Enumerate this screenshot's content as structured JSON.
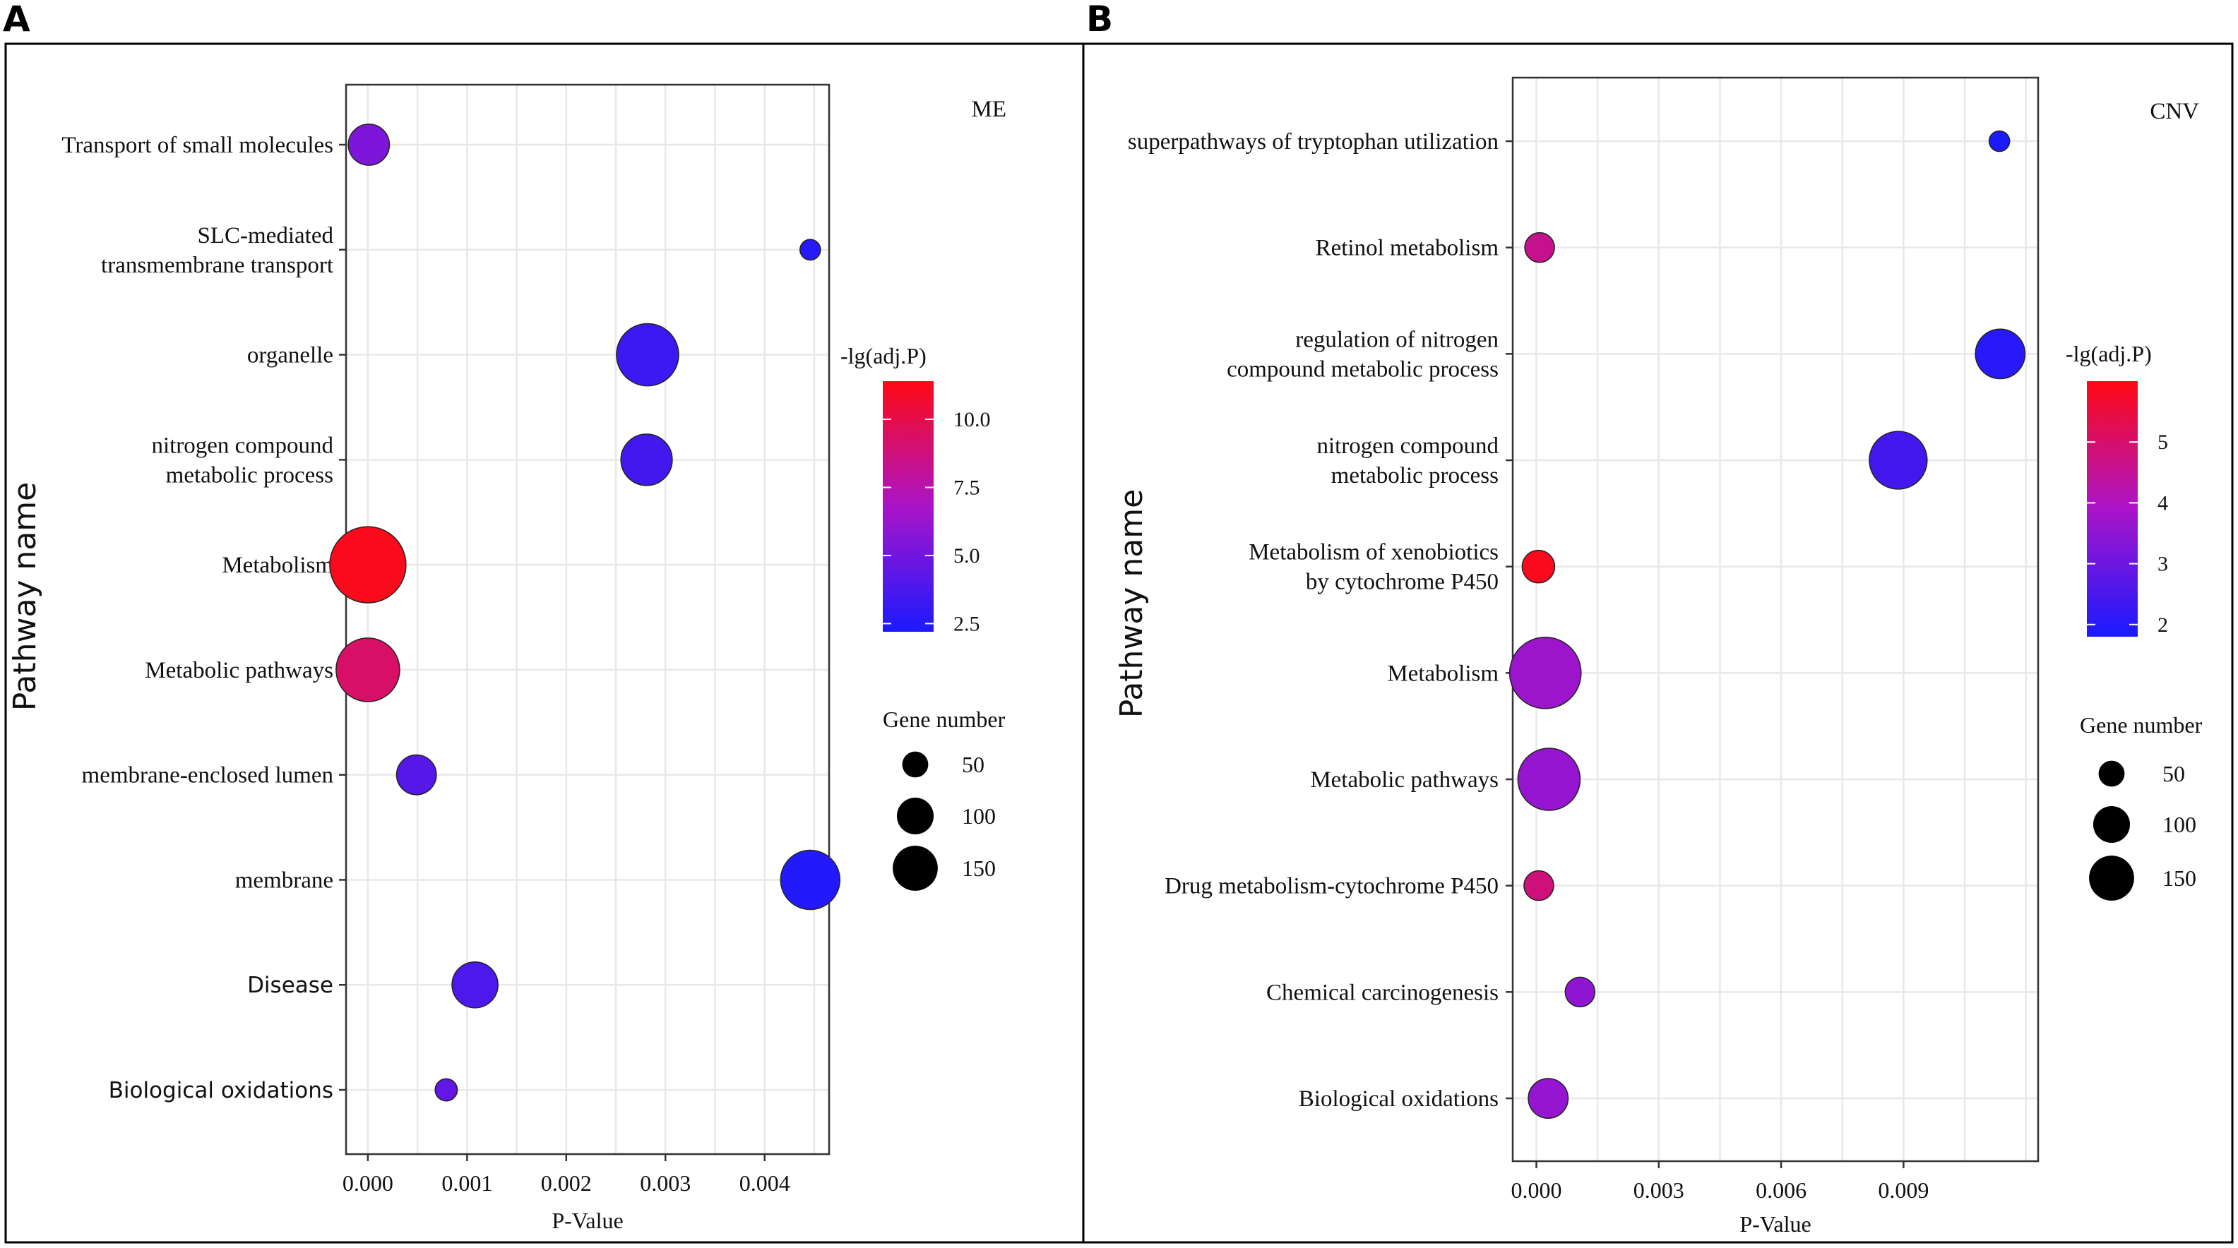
{
  "panel_a_label": "A",
  "panel_b_label": "B",
  "chart_data": [
    {
      "type": "scatter",
      "panel": "A",
      "tag": "ME",
      "xlabel": "P-Value",
      "ylabel": "Pathway name",
      "xlim": [
        -0.00022,
        0.00465
      ],
      "xticks": [
        0.0,
        0.001,
        0.002,
        0.003,
        0.004
      ],
      "xtick_labels": [
        "0.000",
        "0.001",
        "0.002",
        "0.003",
        "0.004"
      ],
      "categories": [
        "Transport of small molecules",
        "SLC-mediated transmembrane transport",
        "organelle",
        "nitrogen compound metabolic process",
        "Metabolism",
        "Metabolic pathways",
        "membrane-enclosed lumen",
        "membrane",
        "Disease",
        "Biological oxidations"
      ],
      "category_labels": [
        [
          "Transport of small molecules"
        ],
        [
          "SLC-mediated",
          "transmembrane transport"
        ],
        [
          "organelle"
        ],
        [
          "nitrogen compound",
          "metabolic process"
        ],
        [
          "Metabolism"
        ],
        [
          "Metabolic pathways"
        ],
        [
          "membrane-enclosed lumen"
        ],
        [
          "membrane"
        ],
        [
          "Disease"
        ],
        [
          "Biological oxidations"
        ]
      ],
      "points": [
        {
          "pathway": "Transport of small molecules",
          "p_value": 1e-05,
          "neg_lg_adj_p": 5.4,
          "gene_number": 48
        },
        {
          "pathway": "SLC-mediated transmembrane transport",
          "p_value": 0.00446,
          "neg_lg_adj_p": 2.6,
          "gene_number": 12
        },
        {
          "pathway": "organelle",
          "p_value": 0.00282,
          "neg_lg_adj_p": 3.3,
          "gene_number": 110
        },
        {
          "pathway": "nitrogen compound metabolic process",
          "p_value": 0.00281,
          "neg_lg_adj_p": 3.5,
          "gene_number": 75
        },
        {
          "pathway": "Metabolism",
          "p_value": 0.0,
          "neg_lg_adj_p": 11.2,
          "gene_number": 165
        },
        {
          "pathway": "Metabolic pathways",
          "p_value": 0.0,
          "neg_lg_adj_p": 9.3,
          "gene_number": 115
        },
        {
          "pathway": "membrane-enclosed lumen",
          "p_value": 0.00049,
          "neg_lg_adj_p": 4.1,
          "gene_number": 45
        },
        {
          "pathway": "membrane",
          "p_value": 0.00446,
          "neg_lg_adj_p": 2.5,
          "gene_number": 100
        },
        {
          "pathway": "Disease",
          "p_value": 0.00108,
          "neg_lg_adj_p": 3.8,
          "gene_number": 60
        },
        {
          "pathway": "Biological oxidations",
          "p_value": 0.00079,
          "neg_lg_adj_p": 4.5,
          "gene_number": 14
        }
      ],
      "color_legend": {
        "title": "-lg(adj.P)",
        "min": 2.2,
        "max": 11.4,
        "ticks": [
          10.0,
          7.5,
          5.0,
          2.5
        ],
        "tick_labels": [
          "10.0",
          "7.5",
          "5.0",
          "2.5"
        ],
        "low_color": "#1a1aff",
        "high_color": "#ff0a14"
      },
      "size_legend": {
        "title": "Gene number",
        "values": [
          50,
          100,
          150
        ],
        "labels": [
          "50",
          "100",
          "150"
        ]
      }
    },
    {
      "type": "scatter",
      "panel": "B",
      "tag": "CNV",
      "xlabel": "P-Value",
      "ylabel": "Pathway name",
      "xlim": [
        -0.00058,
        0.0123
      ],
      "xticks": [
        0.0,
        0.003,
        0.006,
        0.009
      ],
      "xtick_labels": [
        "0.000",
        "0.003",
        "0.006",
        "0.009"
      ],
      "categories": [
        "superpathways of tryptophan utilization",
        "Retinol metabolism",
        "regulation of nitrogen compound metabolic process",
        "nitrogen compound metabolic process",
        "Metabolism of xenobiotics by cytochrome P450",
        "Metabolism",
        "Metabolic pathways",
        "Drug metabolism-cytochrome P450",
        "Chemical carcinogenesis",
        "Biological oxidations"
      ],
      "category_labels": [
        [
          "superpathways of tryptophan utilization"
        ],
        [
          "Retinol metabolism"
        ],
        [
          "regulation of nitrogen",
          "compound metabolic process"
        ],
        [
          "nitrogen compound",
          "metabolic process"
        ],
        [
          "Metabolism of xenobiotics",
          "by cytochrome P450"
        ],
        [
          "Metabolism"
        ],
        [
          "Metabolic pathways"
        ],
        [
          "Drug metabolism-cytochrome P450"
        ],
        [
          "Chemical carcinogenesis"
        ],
        [
          "Biological oxidations"
        ]
      ],
      "points": [
        {
          "pathway": "superpathways of tryptophan utilization",
          "p_value": 0.01135,
          "neg_lg_adj_p": 1.85,
          "gene_number": 12
        },
        {
          "pathway": "Retinol metabolism",
          "p_value": 8e-05,
          "neg_lg_adj_p": 4.6,
          "gene_number": 25
        },
        {
          "pathway": "regulation of nitrogen compound metabolic process",
          "p_value": 0.01137,
          "neg_lg_adj_p": 2.0,
          "gene_number": 70
        },
        {
          "pathway": "nitrogen compound metabolic process",
          "p_value": 0.00887,
          "neg_lg_adj_p": 2.4,
          "gene_number": 95
        },
        {
          "pathway": "Metabolism of xenobiotics by cytochrome P450",
          "p_value": 5e-05,
          "neg_lg_adj_p": 5.9,
          "gene_number": 30
        },
        {
          "pathway": "Metabolism",
          "p_value": 0.00022,
          "neg_lg_adj_p": 3.7,
          "gene_number": 145
        },
        {
          "pathway": "Metabolic pathways",
          "p_value": 0.00031,
          "neg_lg_adj_p": 3.6,
          "gene_number": 110
        },
        {
          "pathway": "Drug metabolism-cytochrome P450",
          "p_value": 6e-05,
          "neg_lg_adj_p": 4.8,
          "gene_number": 25
        },
        {
          "pathway": "Chemical carcinogenesis",
          "p_value": 0.00107,
          "neg_lg_adj_p": 3.5,
          "gene_number": 25
        },
        {
          "pathway": "Biological oxidations",
          "p_value": 0.00029,
          "neg_lg_adj_p": 3.6,
          "gene_number": 45
        }
      ],
      "color_legend": {
        "title": "-lg(adj.P)",
        "min": 1.8,
        "max": 6.0,
        "ticks": [
          5,
          4,
          3,
          2
        ],
        "tick_labels": [
          "5",
          "4",
          "3",
          "2"
        ],
        "low_color": "#1a1aff",
        "high_color": "#ff0a14"
      },
      "size_legend": {
        "title": "Gene number",
        "values": [
          50,
          100,
          150
        ],
        "labels": [
          "50",
          "100",
          "150"
        ]
      }
    }
  ]
}
